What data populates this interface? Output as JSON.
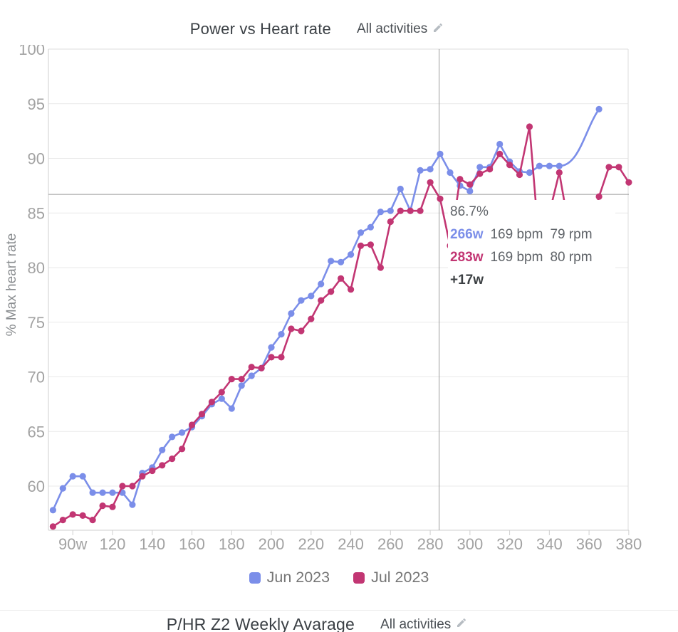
{
  "header": {
    "title": "Power vs Heart rate",
    "scope_label": "All activities"
  },
  "y_axis": {
    "title": "% Max heart rate",
    "ticks": [
      100,
      95,
      90,
      85,
      80,
      75,
      70,
      65,
      60
    ]
  },
  "x_axis": {
    "tick_labels": [
      "90w",
      "120",
      "140",
      "160",
      "180",
      "200",
      "220",
      "240",
      "260",
      "280",
      "300",
      "320",
      "340",
      "360",
      "380"
    ]
  },
  "chart_data": {
    "type": "line",
    "title": "Power vs Heart rate",
    "xlabel": "",
    "ylabel": "% Max heart rate",
    "x_unit": "w",
    "xlim": [
      88,
      382
    ],
    "ylim": [
      56,
      100
    ],
    "grid": "horizontal",
    "legend_position": "bottom",
    "crosshair": {
      "x_watts": 284.5,
      "y_percent": 86.7
    },
    "series": [
      {
        "name": "Jun 2023",
        "color": "#7b8ee9",
        "points": [
          [
            90,
            57.8
          ],
          [
            95,
            59.8
          ],
          [
            100,
            60.9
          ],
          [
            105,
            60.9
          ],
          [
            110,
            59.4
          ],
          [
            115,
            59.4
          ],
          [
            120,
            59.4
          ],
          [
            125,
            59.4
          ],
          [
            130,
            58.3
          ],
          [
            135,
            61.2
          ],
          [
            140,
            61.7
          ],
          [
            145,
            63.3
          ],
          [
            150,
            64.5
          ],
          [
            155,
            64.9
          ],
          [
            160,
            65.4
          ],
          [
            165,
            66.4
          ],
          [
            170,
            67.5
          ],
          [
            175,
            68.0
          ],
          [
            180,
            67.1
          ],
          [
            185,
            69.2
          ],
          [
            190,
            70.1
          ],
          [
            195,
            70.8
          ],
          [
            200,
            72.7
          ],
          [
            205,
            73.9
          ],
          [
            210,
            75.8
          ],
          [
            215,
            77.0
          ],
          [
            220,
            77.4
          ],
          [
            225,
            78.5
          ],
          [
            230,
            80.6
          ],
          [
            235,
            80.5
          ],
          [
            240,
            81.2
          ],
          [
            245,
            83.2
          ],
          [
            250,
            83.7
          ],
          [
            255,
            85.1
          ],
          [
            260,
            85.2
          ],
          [
            265,
            87.2
          ],
          [
            270,
            85.2
          ],
          [
            275,
            88.9
          ],
          [
            280,
            89.0
          ],
          [
            285,
            90.4
          ],
          [
            290,
            88.7
          ],
          [
            295,
            87.5
          ],
          [
            300,
            87.0
          ],
          [
            305,
            89.2
          ],
          [
            310,
            89.2
          ],
          [
            315,
            91.3
          ],
          [
            320,
            89.7
          ],
          [
            325,
            88.8
          ],
          [
            330,
            88.7
          ],
          [
            335,
            89.3
          ],
          [
            340,
            89.3
          ],
          [
            345,
            89.3
          ],
          [
            365,
            94.5
          ]
        ]
      },
      {
        "name": "Jul 2023",
        "color": "#c23673",
        "points": [
          [
            90,
            56.3
          ],
          [
            95,
            56.9
          ],
          [
            100,
            57.4
          ],
          [
            105,
            57.3
          ],
          [
            110,
            56.9
          ],
          [
            115,
            58.2
          ],
          [
            120,
            58.1
          ],
          [
            125,
            60.0
          ],
          [
            130,
            60.0
          ],
          [
            135,
            60.9
          ],
          [
            140,
            61.4
          ],
          [
            145,
            61.9
          ],
          [
            150,
            62.5
          ],
          [
            155,
            63.4
          ],
          [
            160,
            65.6
          ],
          [
            165,
            66.6
          ],
          [
            170,
            67.7
          ],
          [
            175,
            68.6
          ],
          [
            180,
            69.8
          ],
          [
            185,
            69.8
          ],
          [
            190,
            70.9
          ],
          [
            195,
            70.8
          ],
          [
            200,
            71.8
          ],
          [
            205,
            71.8
          ],
          [
            210,
            74.4
          ],
          [
            215,
            74.2
          ],
          [
            220,
            75.3
          ],
          [
            225,
            77.0
          ],
          [
            230,
            77.8
          ],
          [
            235,
            79.0
          ],
          [
            240,
            78.0
          ],
          [
            245,
            82.0
          ],
          [
            250,
            82.1
          ],
          [
            255,
            80.0
          ],
          [
            260,
            84.2
          ],
          [
            265,
            85.2
          ],
          [
            270,
            85.2
          ],
          [
            275,
            85.2
          ],
          [
            280,
            87.8
          ],
          [
            285,
            86.3
          ],
          [
            290,
            82.0
          ],
          [
            295,
            88.1
          ],
          [
            300,
            87.6
          ],
          [
            305,
            88.6
          ],
          [
            310,
            89.0
          ],
          [
            315,
            90.4
          ],
          [
            320,
            89.4
          ],
          [
            325,
            88.5
          ],
          [
            330,
            92.9
          ],
          [
            335,
            81.9
          ],
          [
            340,
            85.0
          ],
          [
            345,
            88.7
          ],
          [
            350,
            83.5
          ],
          [
            355,
            82.0
          ],
          [
            360,
            83.0
          ],
          [
            365,
            86.5
          ],
          [
            370,
            89.2
          ],
          [
            375,
            89.2
          ],
          [
            380,
            87.8
          ]
        ]
      }
    ]
  },
  "tooltip": {
    "percent": "86.7%",
    "rows": [
      {
        "watts": "266w",
        "hr": "169 bpm",
        "cadence": "79 rpm"
      },
      {
        "watts": "283w",
        "hr": "169 bpm",
        "cadence": "80 rpm"
      }
    ],
    "delta": "+17w"
  },
  "legend": {
    "items": [
      {
        "label": "Jun 2023",
        "color": "#7b8ee9"
      },
      {
        "label": "Jul 2023",
        "color": "#c23673"
      }
    ]
  },
  "footer_header": {
    "title": "P/HR Z2 Weekly Avarage",
    "scope_label": "All activities"
  },
  "colors": {
    "blue": "#7b8ee9",
    "pink": "#c23673",
    "grid": "#e9e9e9",
    "border": "#dcdcdc",
    "axis": "#cfcfcf",
    "tick_text": "#a2a2a2",
    "crosshair": "#9b9b9b",
    "axis_title_text": "#8a8d90",
    "title_text": "#3b4045",
    "tooltip_text": "#5f6368",
    "legend_text": "#757575",
    "pencil": "#b6bcc2"
  }
}
